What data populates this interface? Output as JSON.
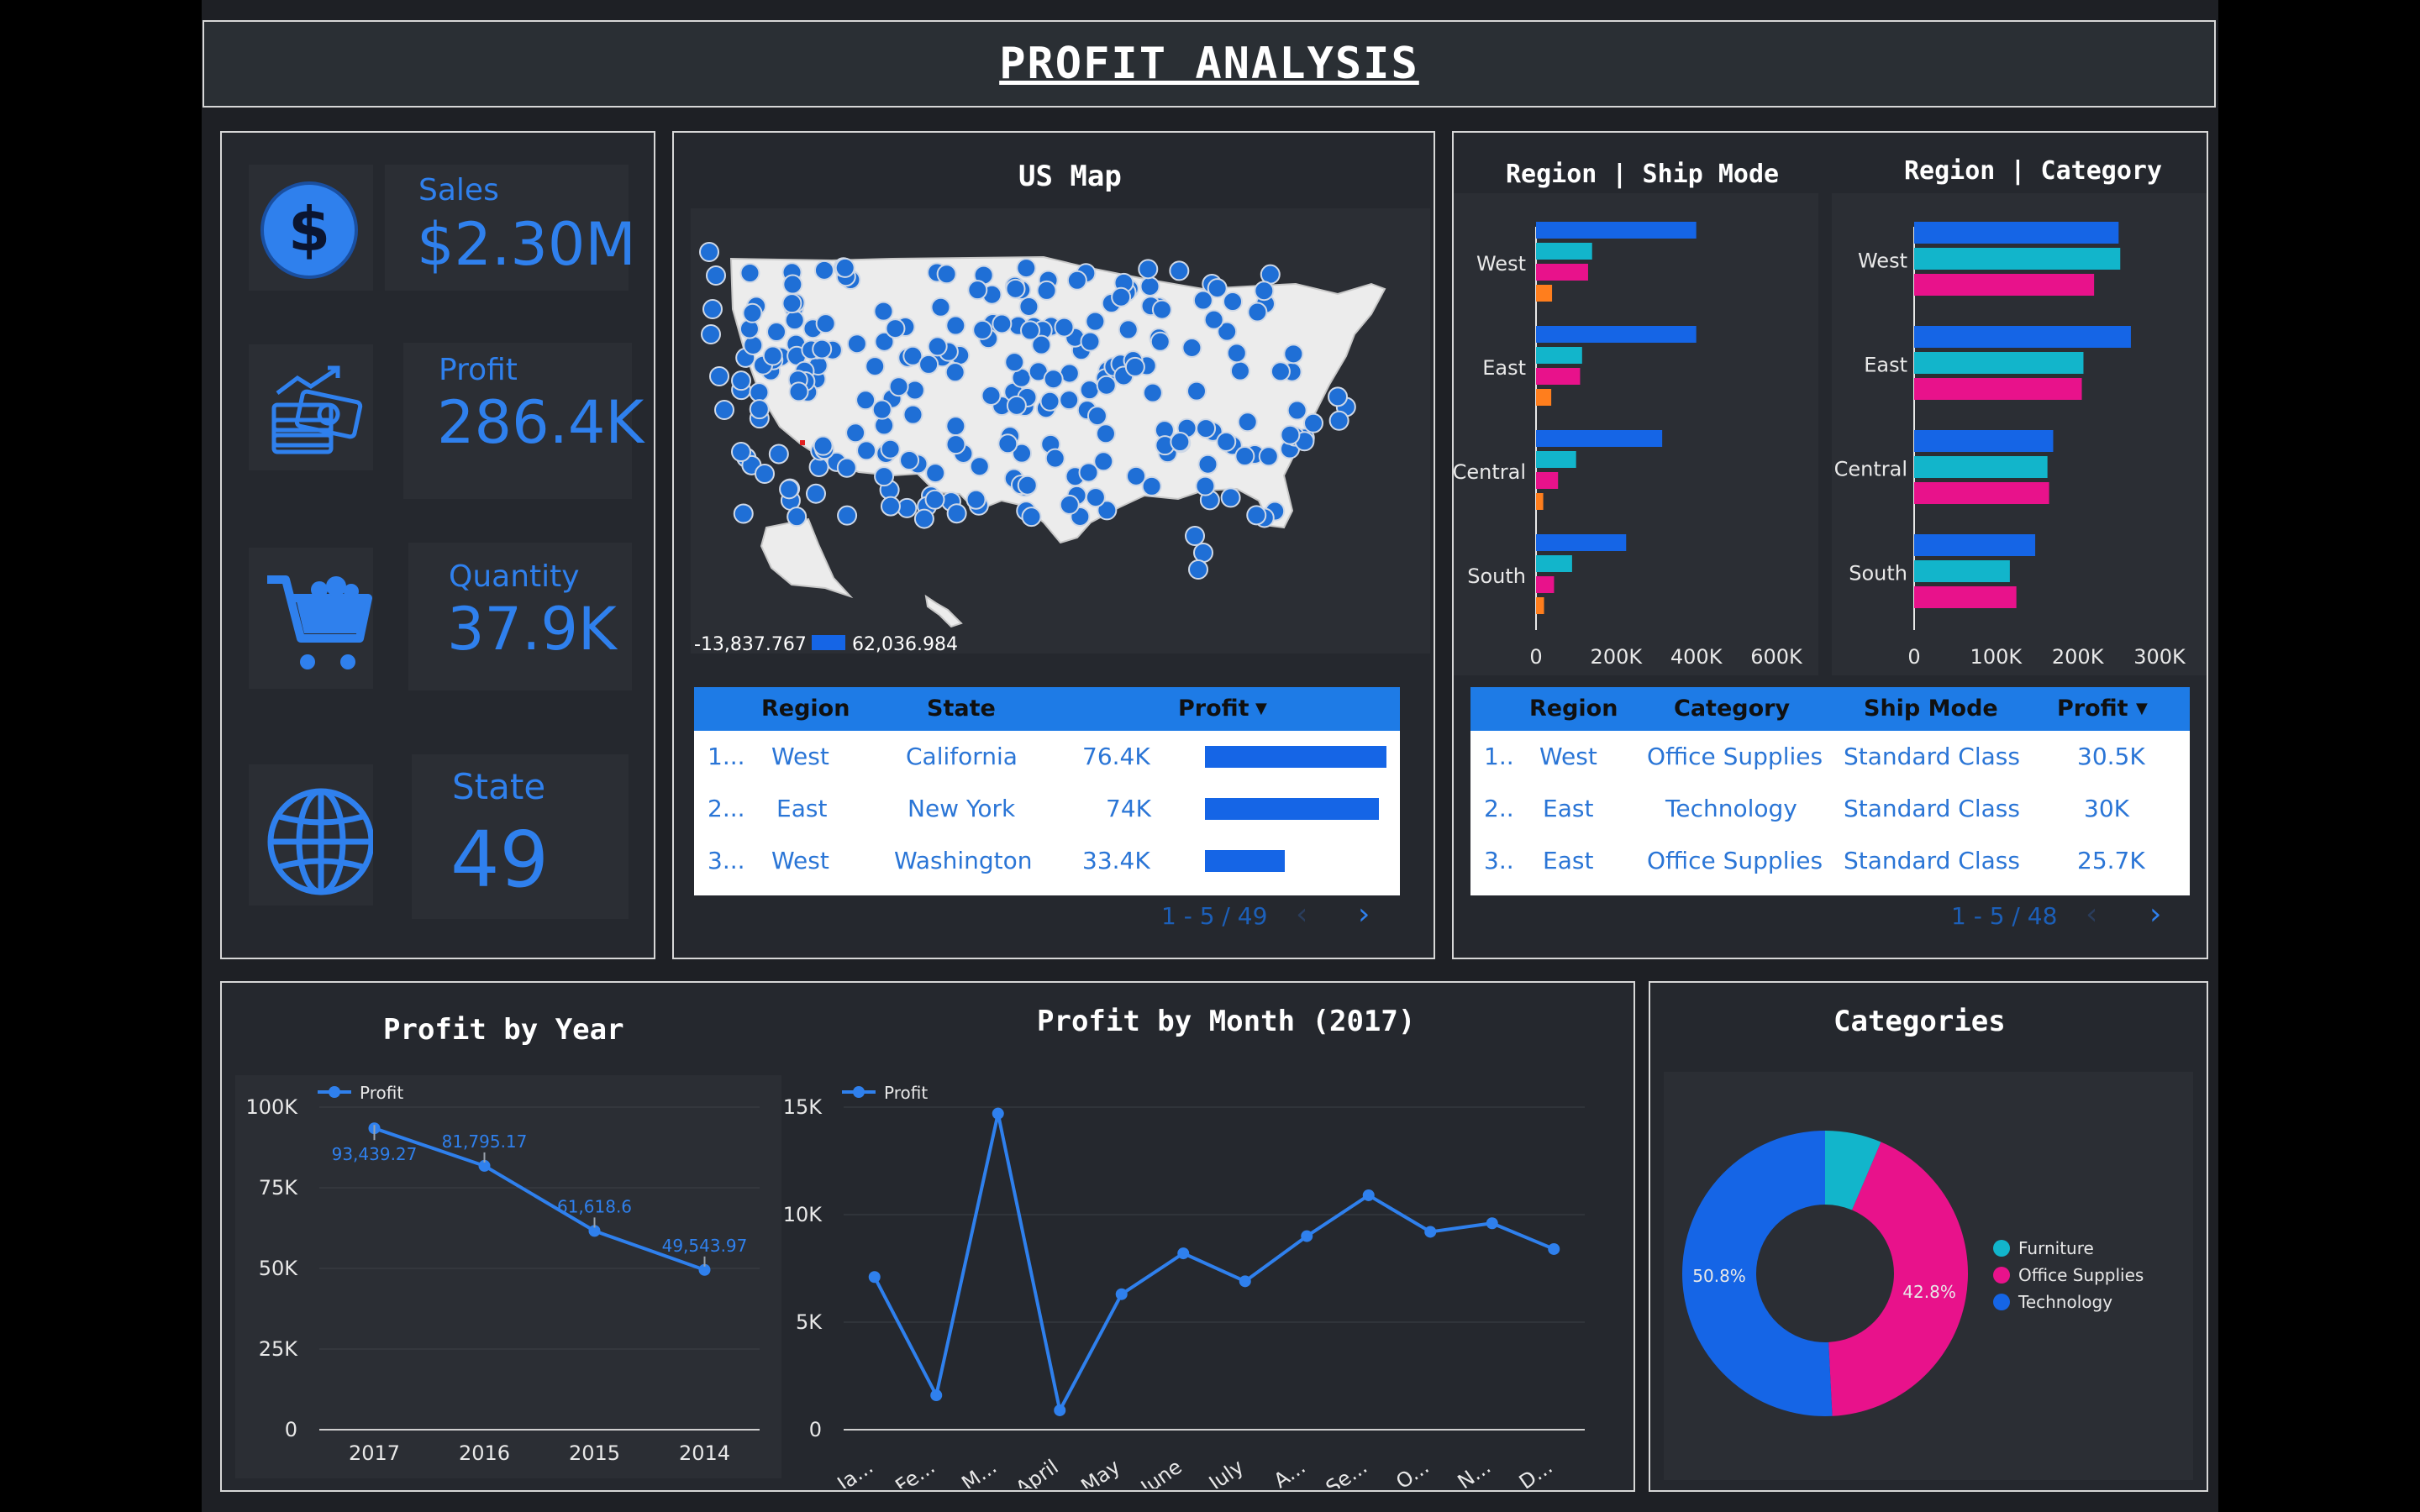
{
  "title": "PROFIT ANALYSIS",
  "kpis": {
    "sales": {
      "label": "Sales",
      "value": "$2.30M",
      "icon": "dollar-icon"
    },
    "profit": {
      "label": "Profit",
      "value": "286.4K",
      "icon": "cash-icon"
    },
    "quantity": {
      "label": "Quantity",
      "value": "37.9K",
      "icon": "cart-icon"
    },
    "state": {
      "label": "State",
      "value": "49",
      "icon": "globe-icon"
    }
  },
  "map": {
    "title": "US Map",
    "legend_min": "-13,837.767",
    "legend_max": "62,036.984"
  },
  "state_table": {
    "headers": [
      "Region",
      "State",
      "Profit"
    ],
    "rows": [
      {
        "idx": "1...",
        "region": "West",
        "state": "California",
        "profit": "76.4K",
        "bar": 1.0
      },
      {
        "idx": "2...",
        "region": "East",
        "state": "New York",
        "profit": "74K",
        "bar": 0.96
      },
      {
        "idx": "3...",
        "region": "West",
        "state": "Washington",
        "profit": "33.4K",
        "bar": 0.44
      }
    ],
    "pager": "1 - 5 / 49"
  },
  "category_table": {
    "headers": [
      "Region",
      "Category",
      "Ship Mode",
      "Profit"
    ],
    "rows": [
      {
        "idx": "1..",
        "region": "West",
        "category": "Office Supplies",
        "ship": "Standard Class",
        "profit": "30.5K"
      },
      {
        "idx": "2..",
        "region": "East",
        "category": "Technology",
        "ship": "Standard Class",
        "profit": "30K"
      },
      {
        "idx": "3..",
        "region": "East",
        "category": "Office Supplies",
        "ship": "Standard Class",
        "profit": "25.7K"
      }
    ],
    "pager": "1 - 5 / 48"
  },
  "colors": {
    "blue": "#1565e6",
    "teal": "#12b5cb",
    "pink": "#e8128b",
    "orange": "#ff7e1d",
    "accent": "#2f80ed"
  },
  "chart_data": [
    {
      "type": "bar",
      "title": "Region | Ship Mode",
      "orientation": "horizontal",
      "categories": [
        "West",
        "East",
        "Central",
        "South"
      ],
      "series": [
        {
          "values": [
            400000,
            400000,
            315000,
            225000
          ],
          "color": "#1565e6"
        },
        {
          "values": [
            140000,
            115000,
            100000,
            90000
          ],
          "color": "#12b5cb"
        },
        {
          "values": [
            130000,
            110000,
            55000,
            45000
          ],
          "color": "#e8128b"
        },
        {
          "values": [
            40000,
            38000,
            18000,
            20000
          ],
          "color": "#ff7e1d"
        }
      ],
      "xticks": [
        "0",
        "200K",
        "400K",
        "600K"
      ],
      "xlim": [
        0,
        600000
      ]
    },
    {
      "type": "bar",
      "title": "Region | Category",
      "orientation": "horizontal",
      "categories": [
        "West",
        "East",
        "Central",
        "South"
      ],
      "series": [
        {
          "values": [
            250000,
            265000,
            170000,
            148000
          ],
          "color": "#1565e6"
        },
        {
          "values": [
            252000,
            207000,
            163000,
            117000
          ],
          "color": "#12b5cb"
        },
        {
          "values": [
            220000,
            205000,
            165000,
            125000
          ],
          "color": "#e8128b"
        }
      ],
      "xticks": [
        "0",
        "100K",
        "200K",
        "300K"
      ],
      "xlim": [
        0,
        300000
      ]
    },
    {
      "type": "line",
      "title": "Profit by Year",
      "series": [
        {
          "name": "Profit",
          "values": [
            93439.27,
            81795.17,
            61618.6,
            49543.97
          ]
        }
      ],
      "x": [
        "2017",
        "2016",
        "2015",
        "2014"
      ],
      "data_labels": [
        "93,439.27",
        "81,795.17",
        "61,618.6",
        "49,543.97"
      ],
      "yticks": [
        "0",
        "25K",
        "50K",
        "75K",
        "100K"
      ],
      "ylim": [
        0,
        100000
      ],
      "grid": true
    },
    {
      "type": "line",
      "title": "Profit by Month (2017)",
      "series": [
        {
          "name": "Profit",
          "values": [
            7100,
            1600,
            14700,
            900,
            6300,
            8200,
            6900,
            9000,
            10900,
            9200,
            9600,
            8400
          ]
        }
      ],
      "x": [
        "Ja...",
        "Fe...",
        "M...",
        "April",
        "May",
        "June",
        "July",
        "A...",
        "Se...",
        "O...",
        "N...",
        "D..."
      ],
      "yticks": [
        "0",
        "5K",
        "10K",
        "15K"
      ],
      "ylim": [
        0,
        15000
      ],
      "grid": true
    },
    {
      "type": "pie",
      "title": "Categories",
      "donut": true,
      "slices": [
        {
          "name": "Furniture",
          "value": 6.4,
          "color": "#12b5cb"
        },
        {
          "name": "Office Supplies",
          "value": 42.8,
          "label": "42.8%",
          "color": "#e8128b"
        },
        {
          "name": "Technology",
          "value": 50.8,
          "label": "50.8%",
          "color": "#1565e6"
        }
      ],
      "legend": "right"
    }
  ]
}
